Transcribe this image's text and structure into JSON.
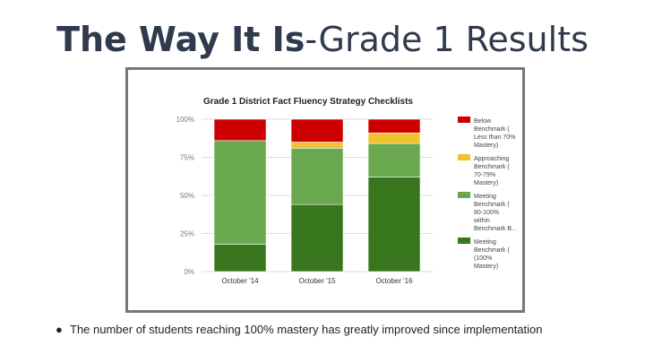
{
  "slide": {
    "title_bold": "The Way It Is",
    "title_rest": "-Grade 1 Results",
    "bullet_symbol": "●",
    "bullet_text": "The number of students reaching 100% mastery has greatly improved since implementation"
  },
  "chart_data": {
    "type": "bar",
    "stacked": true,
    "title": "Grade 1 District Fact Fluency Strategy Checklists",
    "categories": [
      "October '14",
      "October '15",
      "October '16"
    ],
    "y_ticks": [
      "0%",
      "25%",
      "50%",
      "75%",
      "100%"
    ],
    "ylim": [
      0,
      100
    ],
    "grid": true,
    "legend_position": "right",
    "series": [
      {
        "name": "Meeting Benchmark (100% Mastery)",
        "color": "#38761d",
        "values": [
          18,
          44,
          62
        ]
      },
      {
        "name": "Meeting Benchmark (80-100% within Benchmark B...",
        "color": "#6aa84f",
        "values": [
          68,
          37,
          22
        ]
      },
      {
        "name": "Approaching Benchmark (70-79% Mastery)",
        "color": "#f1c232",
        "values": [
          0,
          4,
          7
        ]
      },
      {
        "name": "Below Benchmark (Less than 70% Mastery)",
        "color": "#cc0000",
        "values": [
          14,
          15,
          9
        ]
      }
    ],
    "legend_lines": [
      [
        "Below",
        "Benchmark (",
        "Less than 70%",
        "Mastery)"
      ],
      [
        "Approaching",
        "Benchmark (",
        "70-79%",
        "Mastery)"
      ],
      [
        "Meeting",
        "Benchmark (",
        "80-100%",
        "within",
        "Benchmark B..."
      ],
      [
        "Meeting",
        "Benchmark (",
        "(100%",
        "Mastery)"
      ]
    ]
  }
}
